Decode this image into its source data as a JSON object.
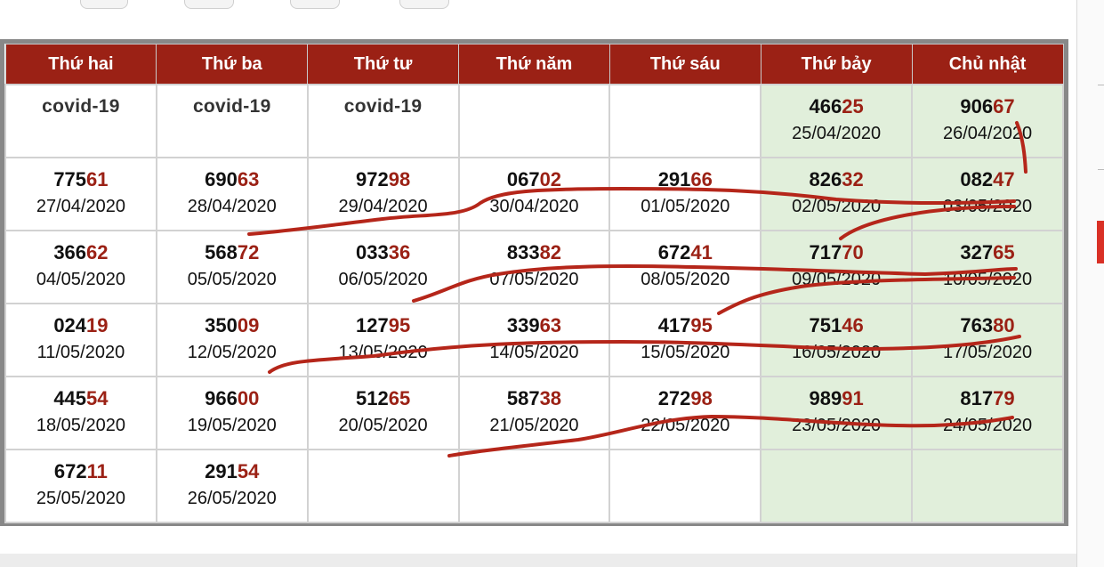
{
  "table": {
    "headers": [
      "Thứ hai",
      "Thứ ba",
      "Thứ tư",
      "Thứ năm",
      "Thứ sáu",
      "Thứ bảy",
      "Chủ nhật"
    ],
    "weekend_color": "#e1efdb",
    "header_color": "#9b2115",
    "tail_color": "#9b2115",
    "rows": [
      [
        {
          "text": "covid-19"
        },
        {
          "text": "covid-19"
        },
        {
          "text": "covid-19"
        },
        {},
        {},
        {
          "head": "466",
          "tail": "25",
          "date": "25/04/2020"
        },
        {
          "head": "906",
          "tail": "67",
          "date": "26/04/2020"
        }
      ],
      [
        {
          "head": "775",
          "tail": "61",
          "date": "27/04/2020"
        },
        {
          "head": "690",
          "tail": "63",
          "date": "28/04/2020"
        },
        {
          "head": "972",
          "tail": "98",
          "date": "29/04/2020"
        },
        {
          "head": "067",
          "tail": "02",
          "date": "30/04/2020"
        },
        {
          "head": "291",
          "tail": "66",
          "date": "01/05/2020"
        },
        {
          "head": "826",
          "tail": "32",
          "date": "02/05/2020"
        },
        {
          "head": "082",
          "tail": "47",
          "date": "03/05/2020"
        }
      ],
      [
        {
          "head": "366",
          "tail": "62",
          "date": "04/05/2020"
        },
        {
          "head": "568",
          "tail": "72",
          "date": "05/05/2020"
        },
        {
          "head": "033",
          "tail": "36",
          "date": "06/05/2020"
        },
        {
          "head": "833",
          "tail": "82",
          "date": "07/05/2020"
        },
        {
          "head": "672",
          "tail": "41",
          "date": "08/05/2020"
        },
        {
          "head": "717",
          "tail": "70",
          "date": "09/05/2020"
        },
        {
          "head": "327",
          "tail": "65",
          "date": "10/05/2020"
        }
      ],
      [
        {
          "head": "024",
          "tail": "19",
          "date": "11/05/2020"
        },
        {
          "head": "350",
          "tail": "09",
          "date": "12/05/2020"
        },
        {
          "head": "127",
          "tail": "95",
          "date": "13/05/2020"
        },
        {
          "head": "339",
          "tail": "63",
          "date": "14/05/2020"
        },
        {
          "head": "417",
          "tail": "95",
          "date": "15/05/2020"
        },
        {
          "head": "751",
          "tail": "46",
          "date": "16/05/2020"
        },
        {
          "head": "763",
          "tail": "80",
          "date": "17/05/2020"
        }
      ],
      [
        {
          "head": "445",
          "tail": "54",
          "date": "18/05/2020"
        },
        {
          "head": "966",
          "tail": "00",
          "date": "19/05/2020"
        },
        {
          "head": "512",
          "tail": "65",
          "date": "20/05/2020"
        },
        {
          "head": "587",
          "tail": "38",
          "date": "21/05/2020"
        },
        {
          "head": "272",
          "tail": "98",
          "date": "22/05/2020"
        },
        {
          "head": "989",
          "tail": "91",
          "date": "23/05/2020"
        },
        {
          "head": "817",
          "tail": "79",
          "date": "24/05/2020"
        }
      ],
      [
        {
          "head": "672",
          "tail": "11",
          "date": "25/05/2020"
        },
        {
          "head": "291",
          "tail": "54",
          "date": "26/05/2020"
        },
        {},
        {},
        {},
        {},
        {}
      ]
    ]
  },
  "annotation_color": "#b5261a"
}
